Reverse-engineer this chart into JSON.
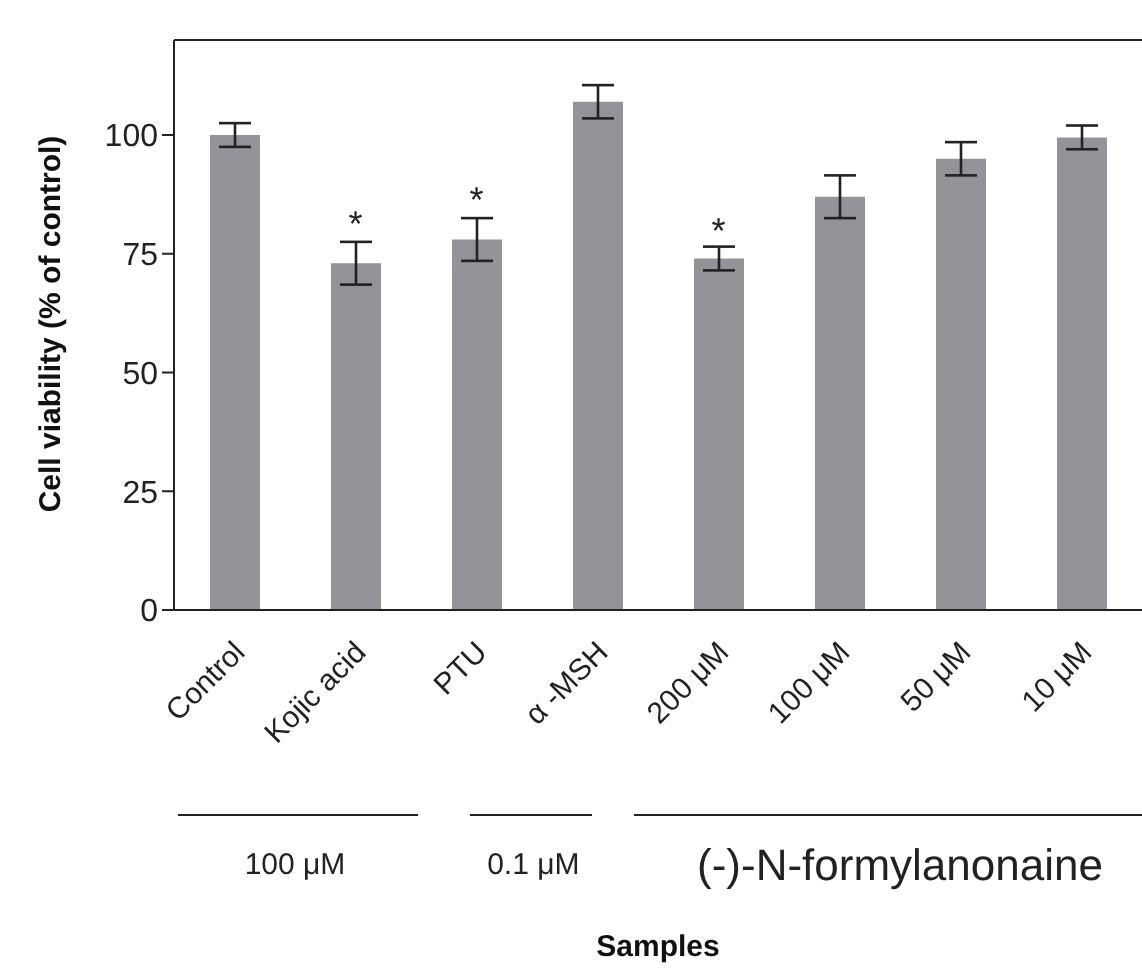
{
  "chart_data": {
    "type": "bar",
    "ylabel": "Cell viability (% of control)",
    "categories": [
      "Control",
      "Kojic acid",
      "PTU",
      "α -MSH",
      "200 μM",
      "100 μM",
      "50 μM",
      "10 μM"
    ],
    "values": [
      100,
      73,
      78,
      107,
      74,
      87,
      95,
      99.5
    ],
    "errors": [
      2.5,
      4.5,
      4.5,
      3.5,
      2.5,
      4.5,
      3.5,
      2.5
    ],
    "color": "#939499",
    "ylim": [
      0,
      120
    ],
    "yticks": [
      0,
      25,
      50,
      75,
      100
    ],
    "grid": false,
    "legend": false,
    "annotations": [
      {
        "text": "*",
        "x": "Kojic acid",
        "y": 78
      },
      {
        "text": "*",
        "x": "PTU",
        "y": 83
      },
      {
        "text": "*",
        "x": "200 μM",
        "y": 76.5
      },
      "100 μM",
      "0.1 μM",
      "(-)-N-formylanonaine",
      "Samples"
    ]
  }
}
